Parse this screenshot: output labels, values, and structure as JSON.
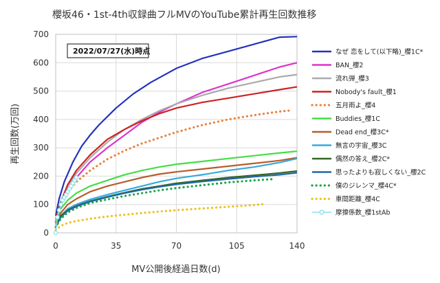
{
  "chart_data": {
    "type": "line",
    "title": "櫻坂46・1st-4th収録曲フルMVのYouTube累計再生回数推移",
    "date_note": "2022/07/27(水)時点",
    "xlabel": "MV公開後経過日数(d)",
    "ylabel": "再生回数(万回)",
    "xlim": [
      0,
      140
    ],
    "ylim": [
      0,
      700
    ],
    "x_ticks": [
      0,
      35,
      70,
      105,
      140
    ],
    "y_ticks": [
      0,
      100,
      200,
      300,
      400,
      500,
      600,
      700
    ],
    "grid": true,
    "legend_position": "right",
    "series": [
      {
        "name": "なぜ 恋をして(以下略)_櫻1C*",
        "color": "#2233bb",
        "style": "solid",
        "points": [
          [
            0,
            60
          ],
          [
            2,
            120
          ],
          [
            5,
            180
          ],
          [
            10,
            250
          ],
          [
            15,
            305
          ],
          [
            20,
            345
          ],
          [
            25,
            380
          ],
          [
            30,
            410
          ],
          [
            35,
            440
          ],
          [
            45,
            490
          ],
          [
            55,
            530
          ],
          [
            70,
            580
          ],
          [
            85,
            615
          ],
          [
            100,
            640
          ],
          [
            115,
            665
          ],
          [
            130,
            690
          ],
          [
            140,
            692
          ]
        ]
      },
      {
        "name": "BAN_櫻2",
        "color": "#dd33cc",
        "style": "solid",
        "points": [
          [
            0,
            40
          ],
          [
            3,
            100
          ],
          [
            7,
            150
          ],
          [
            12,
            195
          ],
          [
            20,
            250
          ],
          [
            30,
            300
          ],
          [
            40,
            345
          ],
          [
            50,
            390
          ],
          [
            60,
            425
          ],
          [
            70,
            455
          ],
          [
            85,
            495
          ],
          [
            100,
            525
          ],
          [
            115,
            555
          ],
          [
            130,
            585
          ],
          [
            140,
            600
          ]
        ]
      },
      {
        "name": "流れ弾_櫻3",
        "color": "#aaaaaa",
        "style": "solid",
        "points": [
          [
            0,
            50
          ],
          [
            3,
            110
          ],
          [
            7,
            165
          ],
          [
            12,
            210
          ],
          [
            20,
            265
          ],
          [
            30,
            320
          ],
          [
            40,
            365
          ],
          [
            50,
            400
          ],
          [
            60,
            430
          ],
          [
            70,
            455
          ],
          [
            85,
            485
          ],
          [
            100,
            510
          ],
          [
            115,
            530
          ],
          [
            130,
            550
          ],
          [
            140,
            558
          ]
        ]
      },
      {
        "name": "Nobody's fault_櫻1",
        "color": "#cc2222",
        "style": "solid",
        "points": [
          [
            0,
            50
          ],
          [
            3,
            110
          ],
          [
            7,
            170
          ],
          [
            12,
            220
          ],
          [
            20,
            275
          ],
          [
            30,
            330
          ],
          [
            40,
            365
          ],
          [
            50,
            395
          ],
          [
            60,
            420
          ],
          [
            70,
            440
          ],
          [
            85,
            460
          ],
          [
            100,
            475
          ],
          [
            115,
            490
          ],
          [
            130,
            505
          ],
          [
            140,
            515
          ]
        ]
      },
      {
        "name": "五月雨よ_櫻4",
        "color": "#e8823a",
        "style": "dotted",
        "points": [
          [
            0,
            40
          ],
          [
            3,
            100
          ],
          [
            7,
            145
          ],
          [
            12,
            180
          ],
          [
            20,
            220
          ],
          [
            30,
            260
          ],
          [
            40,
            290
          ],
          [
            50,
            315
          ],
          [
            60,
            335
          ],
          [
            70,
            355
          ],
          [
            85,
            380
          ],
          [
            100,
            400
          ],
          [
            115,
            415
          ],
          [
            130,
            428
          ],
          [
            137,
            432
          ]
        ]
      },
      {
        "name": "Buddies_櫻1C",
        "color": "#44dd44",
        "style": "solid",
        "points": [
          [
            0,
            40
          ],
          [
            3,
            85
          ],
          [
            7,
            115
          ],
          [
            12,
            140
          ],
          [
            20,
            165
          ],
          [
            30,
            185
          ],
          [
            40,
            205
          ],
          [
            50,
            220
          ],
          [
            60,
            232
          ],
          [
            70,
            242
          ],
          [
            85,
            252
          ],
          [
            100,
            262
          ],
          [
            115,
            272
          ],
          [
            130,
            282
          ],
          [
            140,
            288
          ]
        ]
      },
      {
        "name": "Dead end_櫻3C*",
        "color": "#b85c2a",
        "style": "solid",
        "points": [
          [
            0,
            30
          ],
          [
            3,
            70
          ],
          [
            7,
            100
          ],
          [
            12,
            120
          ],
          [
            20,
            145
          ],
          [
            30,
            165
          ],
          [
            40,
            180
          ],
          [
            50,
            195
          ],
          [
            60,
            207
          ],
          [
            70,
            215
          ],
          [
            85,
            225
          ],
          [
            100,
            235
          ],
          [
            115,
            245
          ],
          [
            130,
            255
          ],
          [
            140,
            265
          ]
        ]
      },
      {
        "name": "無言の宇宙_櫻3C",
        "color": "#33aadd",
        "style": "solid",
        "points": [
          [
            0,
            20
          ],
          [
            3,
            60
          ],
          [
            7,
            85
          ],
          [
            12,
            100
          ],
          [
            20,
            118
          ],
          [
            30,
            135
          ],
          [
            40,
            150
          ],
          [
            50,
            165
          ],
          [
            60,
            180
          ],
          [
            70,
            192
          ],
          [
            85,
            205
          ],
          [
            100,
            220
          ],
          [
            115,
            232
          ],
          [
            130,
            248
          ],
          [
            140,
            262
          ]
        ]
      },
      {
        "name": "偶然の答え_櫻2C*",
        "color": "#336622",
        "style": "solid",
        "points": [
          [
            0,
            20
          ],
          [
            3,
            60
          ],
          [
            7,
            80
          ],
          [
            12,
            95
          ],
          [
            20,
            112
          ],
          [
            30,
            128
          ],
          [
            40,
            142
          ],
          [
            50,
            155
          ],
          [
            60,
            165
          ],
          [
            70,
            175
          ],
          [
            85,
            185
          ],
          [
            100,
            195
          ],
          [
            115,
            203
          ],
          [
            130,
            211
          ],
          [
            140,
            218
          ]
        ]
      },
      {
        "name": "思ったよりも寂しくない_櫻2C",
        "color": "#2266aa",
        "style": "solid",
        "points": [
          [
            0,
            20
          ],
          [
            3,
            55
          ],
          [
            7,
            78
          ],
          [
            12,
            93
          ],
          [
            20,
            110
          ],
          [
            30,
            126
          ],
          [
            40,
            140
          ],
          [
            50,
            152
          ],
          [
            60,
            162
          ],
          [
            70,
            171
          ],
          [
            85,
            181
          ],
          [
            100,
            190
          ],
          [
            115,
            198
          ],
          [
            130,
            205
          ],
          [
            140,
            212
          ]
        ]
      },
      {
        "name": "僕のジレンマ_櫻4C*",
        "color": "#1fa34a",
        "style": "dotted",
        "points": [
          [
            0,
            20
          ],
          [
            3,
            50
          ],
          [
            7,
            72
          ],
          [
            12,
            88
          ],
          [
            20,
            105
          ],
          [
            30,
            118
          ],
          [
            40,
            130
          ],
          [
            50,
            140
          ],
          [
            60,
            150
          ],
          [
            70,
            158
          ],
          [
            85,
            168
          ],
          [
            100,
            178
          ],
          [
            115,
            185
          ],
          [
            127,
            190
          ]
        ]
      },
      {
        "name": "車間距離_櫻4C",
        "color": "#f0c020",
        "style": "dotted",
        "points": [
          [
            0,
            10
          ],
          [
            3,
            25
          ],
          [
            7,
            35
          ],
          [
            12,
            42
          ],
          [
            20,
            50
          ],
          [
            30,
            58
          ],
          [
            40,
            64
          ],
          [
            50,
            70
          ],
          [
            60,
            75
          ],
          [
            70,
            80
          ],
          [
            85,
            86
          ],
          [
            100,
            92
          ],
          [
            115,
            98
          ],
          [
            122,
            102
          ]
        ]
      },
      {
        "name": "摩擦係数_櫻1stAb",
        "color": "#88e0ee",
        "style": "marker",
        "points": [
          [
            0,
            0
          ],
          [
            1,
            55
          ],
          [
            2,
            80
          ],
          [
            3,
            100
          ],
          [
            4,
            115
          ],
          [
            5,
            125
          ],
          [
            6,
            135
          ],
          [
            7,
            145
          ],
          [
            8,
            155
          ],
          [
            9,
            165
          ],
          [
            10,
            175
          ],
          [
            11,
            185
          ],
          [
            12,
            195
          ]
        ]
      }
    ]
  }
}
